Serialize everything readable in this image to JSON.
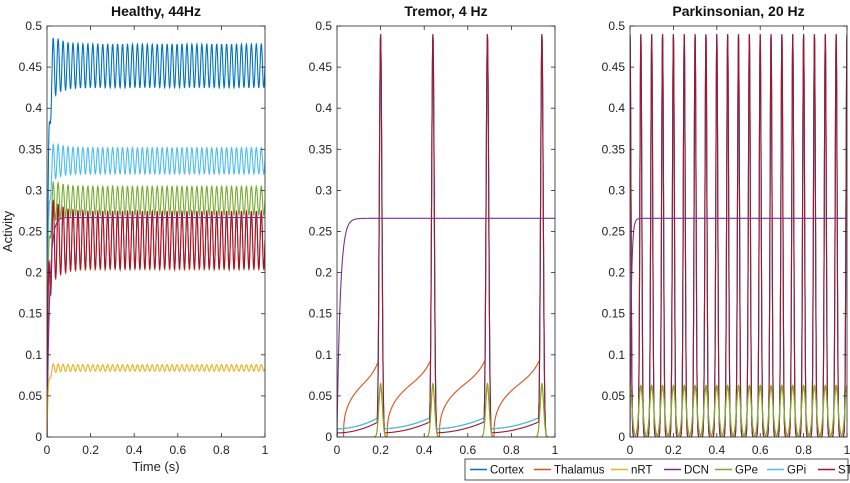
{
  "chart_data": [
    {
      "type": "line",
      "title": "Healthy, 44Hz",
      "xlabel": "Time (s)",
      "ylabel": "Activity",
      "xlim": [
        0,
        1
      ],
      "ylim": [
        0,
        0.5
      ],
      "xticks": [
        "0",
        "0.2",
        "0.4",
        "0.6",
        "0.8",
        "1"
      ],
      "yticks": [
        "0",
        "0.05",
        "0.1",
        "0.15",
        "0.2",
        "0.25",
        "0.3",
        "0.35",
        "0.4",
        "0.45",
        "0.5"
      ],
      "frequency_hz": 44,
      "series": [
        {
          "name": "Cortex",
          "steady_min": 0.425,
          "steady_max": 0.478
        },
        {
          "name": "Thalamus",
          "steady_min": 0.203,
          "steady_max": 0.272
        },
        {
          "name": "nRT",
          "steady_min": 0.08,
          "steady_max": 0.088
        },
        {
          "name": "DCN",
          "steady_min": 0.265,
          "steady_max": 0.267
        },
        {
          "name": "GPe",
          "steady_min": 0.27,
          "steady_max": 0.305
        },
        {
          "name": "GPi",
          "steady_min": 0.32,
          "steady_max": 0.352
        },
        {
          "name": "STN",
          "steady_min": 0.205,
          "steady_max": 0.275
        }
      ]
    },
    {
      "type": "line",
      "title": "Tremor, 4 Hz",
      "xlabel": "",
      "ylabel": "",
      "xlim": [
        0,
        1
      ],
      "ylim": [
        0,
        0.5
      ],
      "xticks": [
        "0",
        "0.2",
        "0.4",
        "0.6",
        "0.8",
        "1"
      ],
      "yticks": [
        "0",
        "0.05",
        "0.1",
        "0.15",
        "0.2",
        "0.25",
        "0.3",
        "0.35",
        "0.4",
        "0.45",
        "0.5"
      ],
      "frequency_hz": 4,
      "peak_times": [
        0.2,
        0.44,
        0.69,
        0.94
      ],
      "series": [
        {
          "name": "Cortex",
          "peak": 0.49,
          "baseline": 0.01
        },
        {
          "name": "Thalamus",
          "peak": 0.49,
          "baseline": 0.08
        },
        {
          "name": "nRT",
          "peak": 0.06,
          "baseline": 0.0
        },
        {
          "name": "DCN",
          "steady": 0.266
        },
        {
          "name": "GPe",
          "peak": 0.065,
          "baseline": 0.0
        },
        {
          "name": "GPi",
          "peak": 0.48,
          "baseline": 0.01
        },
        {
          "name": "STN",
          "peak": 0.49,
          "baseline": 0.005
        }
      ]
    },
    {
      "type": "line",
      "title": "Parkinsonian, 20 Hz",
      "xlabel": "",
      "ylabel": "",
      "xlim": [
        0,
        1
      ],
      "ylim": [
        0,
        0.5
      ],
      "xticks": [
        "0",
        "0.2",
        "0.4",
        "0.6",
        "0.8",
        "1"
      ],
      "yticks": [
        "0",
        "0.05",
        "0.1",
        "0.15",
        "0.2",
        "0.25",
        "0.3",
        "0.35",
        "0.4",
        "0.45",
        "0.5"
      ],
      "frequency_hz": 20,
      "series": [
        {
          "name": "Cortex",
          "min": 0.0,
          "max": 0.49
        },
        {
          "name": "Thalamus",
          "min": 0.0,
          "max": 0.49
        },
        {
          "name": "nRT",
          "min": 0.0,
          "max": 0.06
        },
        {
          "name": "DCN",
          "steady": 0.266
        },
        {
          "name": "GPe",
          "min": 0.0,
          "max": 0.063
        },
        {
          "name": "GPi",
          "min": 0.0,
          "max": 0.48
        },
        {
          "name": "STN",
          "min": 0.0,
          "max": 0.49
        }
      ]
    }
  ],
  "legend": {
    "placement": "bottom-right",
    "entries": [
      {
        "name": "Cortex",
        "color": "#0072BD"
      },
      {
        "name": "Thalamus",
        "color": "#D95319"
      },
      {
        "name": "nRT",
        "color": "#EDB120"
      },
      {
        "name": "DCN",
        "color": "#7E2F8E"
      },
      {
        "name": "GPe",
        "color": "#77AC30"
      },
      {
        "name": "GPi",
        "color": "#4DBEEE"
      },
      {
        "name": "STN",
        "color": "#A2142F"
      }
    ]
  }
}
